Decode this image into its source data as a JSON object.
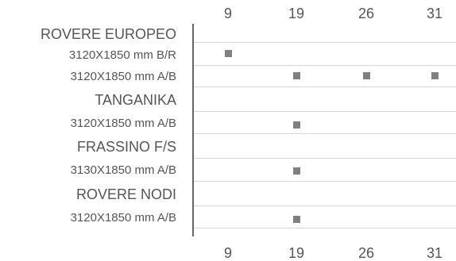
{
  "columns": [
    "9",
    "19",
    "26",
    "31"
  ],
  "rows": [
    {
      "label": "ROVERE EUROPEO",
      "kind": "group",
      "marks": []
    },
    {
      "label": "3120X1850 mm B/R",
      "kind": "item",
      "marks": [
        "9"
      ]
    },
    {
      "label": "3120X1850 mm A/B",
      "kind": "item",
      "marks": [
        "19",
        "26",
        "31"
      ]
    },
    {
      "label": "TANGANIKA",
      "kind": "group",
      "marks": []
    },
    {
      "label": "3120X1850 mm A/B",
      "kind": "item",
      "marks": [
        "19"
      ]
    },
    {
      "label": "FRASSINO F/S",
      "kind": "group",
      "marks": []
    },
    {
      "label": "3130X1850 mm A/B",
      "kind": "item",
      "marks": [
        "19"
      ]
    },
    {
      "label": "ROVERE NODI",
      "kind": "group",
      "marks": []
    },
    {
      "label": "3120X1850 mm A/B",
      "kind": "item",
      "marks": [
        "19"
      ]
    }
  ],
  "colors": {
    "text": "#555555",
    "marker": "#808080",
    "gridline": "#d6d6d6",
    "axis": "#666666"
  }
}
